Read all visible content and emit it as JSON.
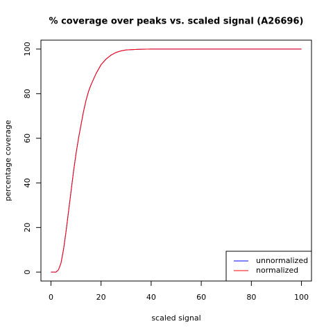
{
  "chart_data": {
    "type": "line",
    "title": "% coverage over peaks vs. scaled signal (A26696)",
    "x_label": "scaled signal",
    "y_label": "percentage coverage",
    "x": [
      0,
      1,
      2,
      3,
      4,
      5,
      6,
      7,
      8,
      9,
      10,
      11,
      12,
      13,
      14,
      15,
      16,
      18,
      20,
      22,
      24,
      26,
      28,
      30,
      35,
      40,
      50,
      60,
      70,
      80,
      90,
      100
    ],
    "series": [
      {
        "name": "unnormalized",
        "color": "#0000ff",
        "values": [
          0,
          0,
          0,
          1,
          4,
          10,
          18,
          27,
          36,
          45,
          53,
          60,
          66,
          72,
          77,
          81,
          84,
          89,
          93,
          95.5,
          97.3,
          98.5,
          99.2,
          99.6,
          99.9,
          100,
          100,
          100,
          100,
          100,
          100,
          100
        ]
      },
      {
        "name": "normalized",
        "color": "#ff0000",
        "values": [
          0,
          0,
          0,
          1,
          4,
          10,
          18,
          27,
          36,
          45,
          53,
          60,
          66,
          72,
          77,
          81,
          84,
          89,
          93,
          95.5,
          97.3,
          98.5,
          99.2,
          99.6,
          99.9,
          100,
          100,
          100,
          100,
          100,
          100,
          100
        ]
      }
    ],
    "xlim": [
      -4,
      104
    ],
    "ylim": [
      -4,
      104
    ],
    "xticks": [
      0,
      20,
      40,
      60,
      80,
      100
    ],
    "yticks": [
      0,
      20,
      40,
      60,
      80,
      100
    ],
    "legend": "bottomright"
  }
}
